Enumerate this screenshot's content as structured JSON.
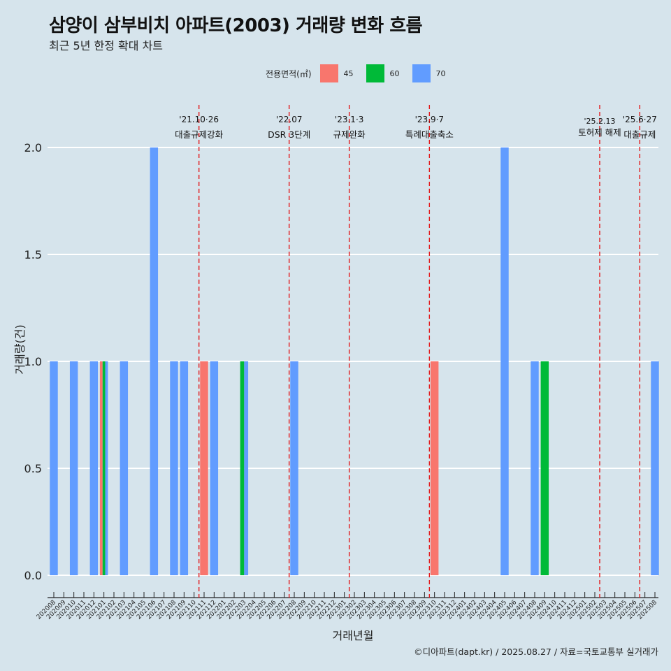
{
  "header": {
    "title": "삼양이 삼부비치 아파트(2003) 거래량 변화 흐름",
    "subtitle": "최근 5년 한정 확대 차트"
  },
  "legend": {
    "title": "전용면적(㎡)",
    "items": [
      {
        "label": "45",
        "color": "#f8766d"
      },
      {
        "label": "60",
        "color": "#00ba38"
      },
      {
        "label": "70",
        "color": "#619cff"
      }
    ]
  },
  "caption": "©디아파트(dapt.kr) / 2025.08.27 / 자료=국토교통부 실거래가",
  "chart_data": {
    "type": "bar",
    "xlabel": "거래년월",
    "ylabel": "거래량(건)",
    "ylim": [
      0,
      2
    ],
    "yticks": [
      "0.0",
      "0.5",
      "1.0",
      "1.5",
      "2.0"
    ],
    "categories": [
      "202008",
      "202009",
      "202010",
      "202011",
      "202012",
      "202101",
      "202102",
      "202103",
      "202104",
      "202105",
      "202106",
      "202107",
      "202108",
      "202109",
      "202110",
      "202111",
      "202112",
      "202201",
      "202202",
      "202203",
      "202204",
      "202205",
      "202206",
      "202207",
      "202208",
      "202209",
      "202210",
      "202211",
      "202212",
      "202301",
      "202302",
      "202303",
      "202304",
      "202305",
      "202306",
      "202307",
      "202308",
      "202309",
      "202310",
      "202311",
      "202312",
      "202401",
      "202402",
      "202403",
      "202404",
      "202405",
      "202406",
      "202407",
      "202408",
      "202409",
      "202410",
      "202411",
      "202412",
      "202501",
      "202502",
      "202503",
      "202504",
      "202505",
      "202506",
      "202507",
      "202508"
    ],
    "series": [
      {
        "name": "45",
        "color": "#f8766d",
        "values": {
          "202101": 1,
          "202111": 1,
          "202310": 1
        }
      },
      {
        "name": "60",
        "color": "#00ba38",
        "values": {
          "202101": 1,
          "202203": 1,
          "202409": 1
        }
      },
      {
        "name": "70",
        "color": "#619cff",
        "values": {
          "202008": 1,
          "202010": 1,
          "202012": 1,
          "202101": 1,
          "202103": 1,
          "202106": 2,
          "202108": 1,
          "202109": 1,
          "202112": 1,
          "202203": 1,
          "202208": 1,
          "202405": 2,
          "202408": 1,
          "202508": 1
        }
      }
    ],
    "grid": true,
    "legend_position": "top",
    "annotations": [
      {
        "at": "202110",
        "date": "'21.10·26",
        "label": "대출규제강화"
      },
      {
        "at": "202207",
        "date": "'22.07",
        "label": "DSR 3단계"
      },
      {
        "at": "202301",
        "date": "'23.1·3",
        "label": "규제완화"
      },
      {
        "at": "202309",
        "date": "'23.9·7",
        "label": "특례대출축소"
      },
      {
        "at": "202502",
        "date": "'25.2.13",
        "label": "토허제 해제"
      },
      {
        "at": "202506",
        "date": "'25.6·27",
        "label": "대출규제"
      }
    ]
  }
}
